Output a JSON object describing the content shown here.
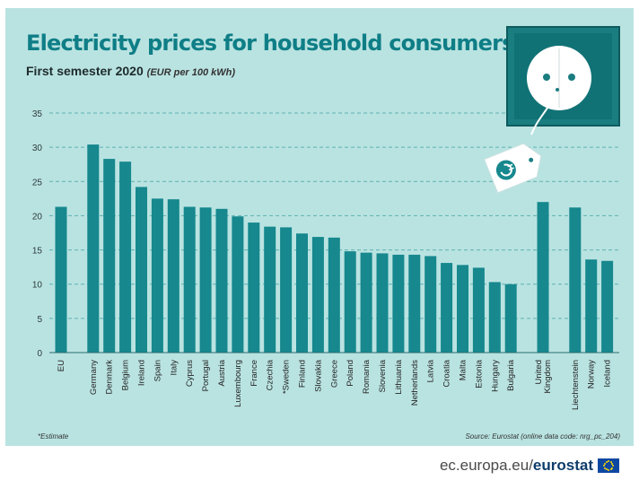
{
  "header": {
    "title": "Electricity prices for household consumers",
    "subtitle": "First semester 2020",
    "unit": "(EUR per 100 kWh)"
  },
  "chart_data": {
    "type": "bar",
    "title": "Electricity prices for household consumers",
    "subtitle": "First semester 2020 (EUR per 100 kWh)",
    "xlabel": "",
    "ylabel": "",
    "ylim": [
      0,
      35
    ],
    "yticks": [
      0,
      5,
      10,
      15,
      20,
      25,
      30,
      35
    ],
    "grid": true,
    "categories": [
      "EU",
      "Germany",
      "Denmark",
      "Belgium",
      "Ireland",
      "Spain",
      "Italy",
      "Cyprus",
      "Portugal",
      "Austria",
      "Luxembourg",
      "France",
      "Czechia",
      "*Sweden",
      "Finland",
      "Slovakia",
      "Greece",
      "Poland",
      "Romania",
      "Slovenia",
      "Lithuania",
      "Netherlands",
      "Latvia",
      "Croatia",
      "Malta",
      "Estonia",
      "Hungary",
      "Bulgaria",
      "United Kingdom",
      "Liechtenstein",
      "Norway",
      "Iceland"
    ],
    "values": [
      21.3,
      30.4,
      28.3,
      27.9,
      24.2,
      22.5,
      22.4,
      21.3,
      21.2,
      21.0,
      19.9,
      19.0,
      18.4,
      18.3,
      17.4,
      16.9,
      16.8,
      14.8,
      14.6,
      14.5,
      14.3,
      14.3,
      14.1,
      13.1,
      12.8,
      12.4,
      10.3,
      10.0,
      22.0,
      21.2,
      13.6,
      13.4
    ],
    "color": "#16888e"
  },
  "footer": {
    "note": "*Estimate",
    "source": "Source: Eurostat (online data code: nrg_pc_204)"
  },
  "brand": {
    "site": "ec.europa.eu/",
    "name": "eurostat"
  },
  "colors": {
    "background": "#b9e3e1",
    "bar": "#16888e",
    "title": "#0f7e86"
  },
  "icons": [
    "power-socket-icon",
    "price-tag-icon",
    "eu-flag-icon"
  ]
}
